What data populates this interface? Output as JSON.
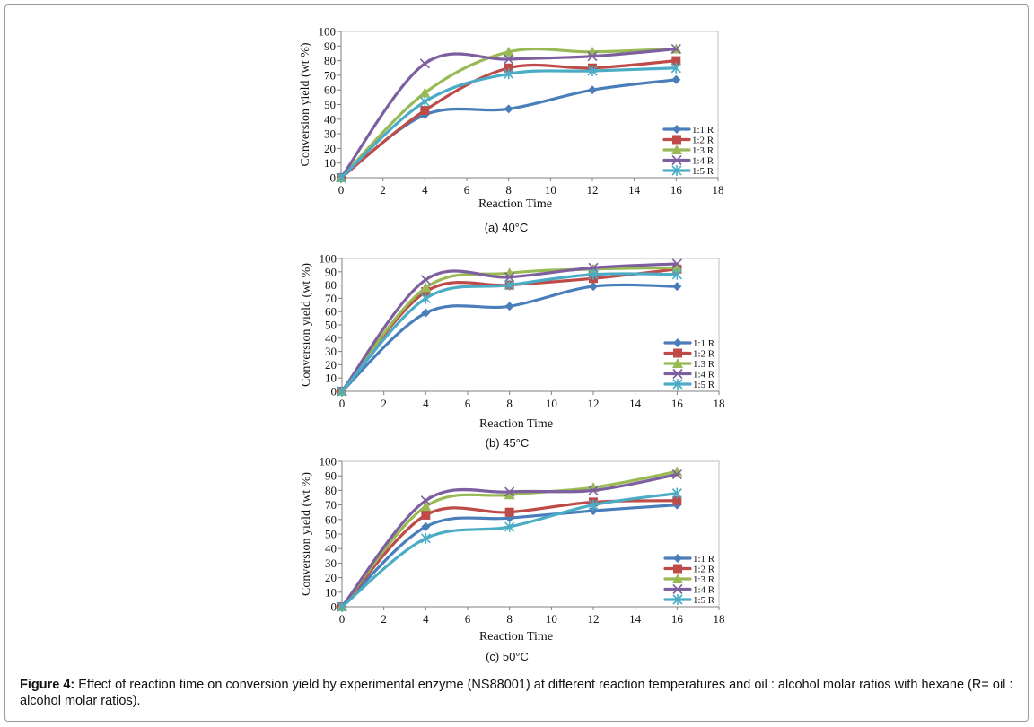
{
  "figure_caption": {
    "label": "Figure 4:",
    "text": " Effect of reaction time on conversion yield by experimental enzyme (NS88001) at different reaction temperatures and oil : alcohol molar ratios with hexane (R= oil : alcohol molar ratios)."
  },
  "series_colors": [
    "#4a7ebb",
    "#be4b48",
    "#98b954",
    "#7d5fa0",
    "#4bacc6"
  ],
  "series_markers": [
    "diamond",
    "square",
    "triangle",
    "x",
    "asterisk"
  ],
  "chart_data": [
    {
      "type": "line",
      "subcaption": "(a) 40°C",
      "xlabel": "Reaction Time",
      "ylabel": "Conversion yield (wt %)",
      "xlim": [
        0,
        18
      ],
      "ylim": [
        0,
        100
      ],
      "xticks": [
        "0",
        "2",
        "4",
        "6",
        "8",
        "10",
        "12",
        "14",
        "16",
        "18"
      ],
      "yticks": [
        "0",
        "10",
        "20",
        "30",
        "40",
        "50",
        "60",
        "70",
        "80",
        "90",
        "100"
      ],
      "grid": false,
      "legend": "bottom-right",
      "smooth": true,
      "x": [
        0,
        4,
        8,
        12,
        16
      ],
      "series": [
        {
          "name": "1:1 R",
          "values": [
            0,
            43,
            47,
            60,
            67
          ]
        },
        {
          "name": "1:2 R",
          "values": [
            0,
            46,
            75,
            75,
            80
          ]
        },
        {
          "name": "1:3 R",
          "values": [
            0,
            58,
            86,
            86,
            88
          ]
        },
        {
          "name": "1:4 R",
          "values": [
            0,
            78,
            81,
            83,
            88
          ]
        },
        {
          "name": "1:5 R",
          "values": [
            0,
            52,
            71,
            73,
            75
          ]
        }
      ]
    },
    {
      "type": "line",
      "subcaption": "(b) 45°C",
      "xlabel": "Reaction Time",
      "ylabel": "Conversion yield (wt %)",
      "xlim": [
        0,
        18
      ],
      "ylim": [
        0,
        100
      ],
      "xticks": [
        "0",
        "2",
        "4",
        "6",
        "8",
        "10",
        "12",
        "14",
        "16",
        "18"
      ],
      "yticks": [
        "0",
        "10",
        "20",
        "30",
        "40",
        "50",
        "60",
        "70",
        "80",
        "90",
        "100"
      ],
      "grid": false,
      "legend": "bottom-right",
      "smooth": true,
      "x": [
        0,
        4,
        8,
        12,
        16
      ],
      "series": [
        {
          "name": "1:1 R",
          "values": [
            0,
            59,
            64,
            79,
            79
          ]
        },
        {
          "name": "1:2 R",
          "values": [
            0,
            75,
            80,
            85,
            92
          ]
        },
        {
          "name": "1:3 R",
          "values": [
            0,
            78,
            89,
            92,
            93
          ]
        },
        {
          "name": "1:4 R",
          "values": [
            0,
            84,
            86,
            93,
            96
          ]
        },
        {
          "name": "1:5 R",
          "values": [
            0,
            70,
            80,
            88,
            88
          ]
        }
      ]
    },
    {
      "type": "line",
      "subcaption": "(c) 50°C",
      "xlabel": "Reaction Time",
      "ylabel": "Conversion yield (wt %)",
      "xlim": [
        0,
        18
      ],
      "ylim": [
        0,
        100
      ],
      "xticks": [
        "0",
        "2",
        "4",
        "6",
        "8",
        "10",
        "12",
        "14",
        "16",
        "18"
      ],
      "yticks": [
        "0",
        "10",
        "20",
        "30",
        "40",
        "50",
        "60",
        "70",
        "80",
        "90",
        "100"
      ],
      "grid": false,
      "legend": "bottom-right",
      "smooth": true,
      "x": [
        0,
        4,
        8,
        12,
        16
      ],
      "series": [
        {
          "name": "1:1 R",
          "values": [
            0,
            55,
            61,
            66,
            70
          ]
        },
        {
          "name": "1:2 R",
          "values": [
            0,
            63,
            65,
            72,
            73
          ]
        },
        {
          "name": "1:3 R",
          "values": [
            0,
            69,
            77,
            82,
            93
          ]
        },
        {
          "name": "1:4 R",
          "values": [
            0,
            73,
            79,
            80,
            91
          ]
        },
        {
          "name": "1:5 R",
          "values": [
            0,
            47,
            55,
            70,
            78
          ]
        }
      ]
    }
  ]
}
